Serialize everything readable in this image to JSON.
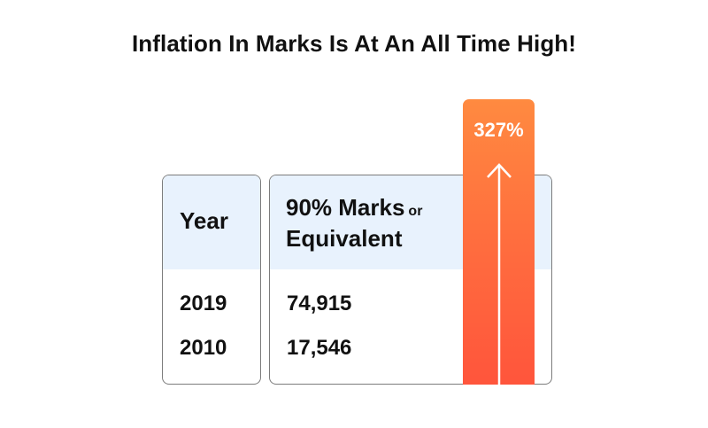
{
  "title": "Inflation In Marks Is At An All Time High!",
  "chart_data": {
    "type": "table",
    "columns": {
      "year": "Year",
      "marks": "90% Marks",
      "marks_or": "or",
      "marks_line2": "Equivalent"
    },
    "rows": [
      {
        "year": "2019",
        "marks": "74,915",
        "value": 74915
      },
      {
        "year": "2010",
        "marks": "17,546",
        "value": 17546
      }
    ],
    "increase_label": "327%",
    "increase_percent": 327
  },
  "colors": {
    "header_bg": "#e8f2fd",
    "bar_top": "#ff8a40",
    "bar_bottom": "#ff553c",
    "border": "#7c7c7c"
  },
  "icons": [
    "arrow-up-icon"
  ]
}
